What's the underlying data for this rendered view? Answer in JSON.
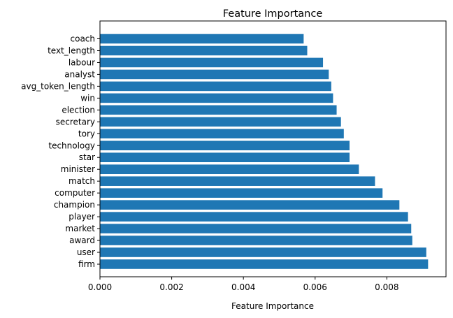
{
  "chart_data": {
    "type": "bar",
    "orientation": "horizontal",
    "title": "Feature Importance",
    "xlabel": "Feature Importance",
    "ylabel": "",
    "xlim": [
      0,
      0.00965
    ],
    "xticks": [
      "0.000",
      "0.002",
      "0.004",
      "0.006",
      "0.008"
    ],
    "xtick_values": [
      0,
      0.002,
      0.004,
      0.006,
      0.008
    ],
    "bar_color": "#1f77b4",
    "grid": false,
    "categories": [
      "coach",
      "text_length",
      "labour",
      "analyst",
      "avg_token_length",
      "win",
      "election",
      "secretary",
      "tory",
      "technology",
      "star",
      "minister",
      "match",
      "computer",
      "champion",
      "player",
      "market",
      "award",
      "user",
      "firm"
    ],
    "values": [
      0.00568,
      0.00578,
      0.00622,
      0.00638,
      0.00645,
      0.0065,
      0.0066,
      0.00672,
      0.0068,
      0.00696,
      0.00696,
      0.00722,
      0.00767,
      0.00788,
      0.00835,
      0.00859,
      0.00868,
      0.00871,
      0.0091,
      0.00915
    ]
  }
}
